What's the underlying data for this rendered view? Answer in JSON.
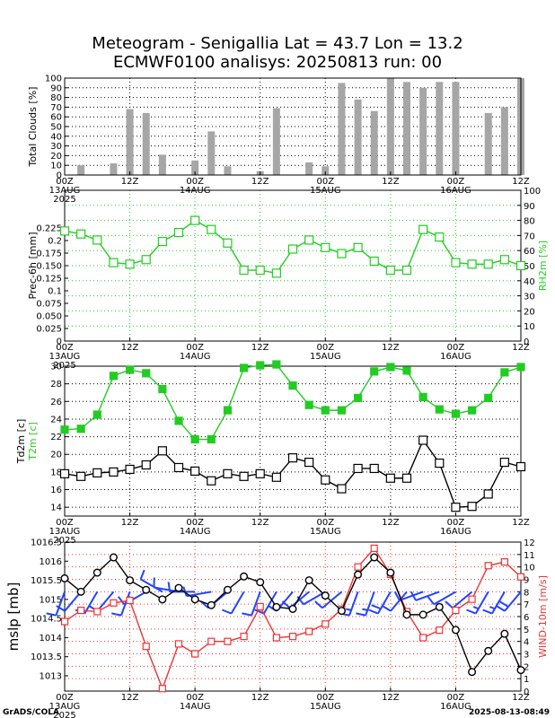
{
  "title_line1": "Meteogram - Senigallia Lat = 43.7 Lon = 13.2",
  "title_line2": "ECMWF0100 analisys: 20250813 run: 00",
  "footer_left": "GrADS/COLA",
  "footer_right": "2025-08-13-08:49",
  "colors": {
    "bars": "#a6a6a6",
    "green": "#22cc22",
    "blue": "#1a1aee",
    "red": "#ee3333",
    "black": "#000000",
    "barb_blue": "#2244ff"
  },
  "time_axis": {
    "labels": [
      "00Z",
      "12Z",
      "00Z",
      "12Z",
      "00Z",
      "12Z",
      "00Z",
      "12Z"
    ],
    "dates": [
      "13AUG",
      "",
      "14AUG",
      "",
      "15AUG",
      "",
      "16AUG",
      ""
    ],
    "year": "2025"
  },
  "chart_data": [
    {
      "type": "bar",
      "name": "clouds",
      "ylabel": "Total Clouds [%]",
      "ylim": [
        0,
        100
      ],
      "yticks": [
        0,
        10,
        20,
        30,
        40,
        50,
        60,
        70,
        80,
        90,
        100
      ],
      "x_hours": [
        3,
        9,
        12,
        15,
        18,
        24,
        27,
        30,
        36,
        39,
        45,
        48,
        51,
        54,
        57,
        60,
        63,
        66,
        69,
        72,
        78,
        81,
        84
      ],
      "values": [
        10,
        12,
        68,
        64,
        21,
        15,
        45,
        9,
        4,
        69,
        13,
        9,
        95,
        78,
        66,
        100,
        96,
        90,
        96,
        96,
        64,
        70,
        100
      ],
      "grid": true
    },
    {
      "type": "line",
      "name": "precip_rh",
      "ylabel": "Prec-6h [mm]",
      "ylabel_right": "RH2m [%]",
      "ylim_left": [
        0,
        0.3
      ],
      "yticks_left": [
        0,
        0.025,
        0.05,
        0.075,
        0.1,
        0.125,
        0.15,
        0.175,
        0.2,
        0.225
      ],
      "ylim_right": [
        0,
        100
      ],
      "yticks_right": [
        0,
        10,
        20,
        30,
        40,
        50,
        60,
        70,
        80,
        90,
        100
      ],
      "series": [
        {
          "name": "RH2m",
          "color": "#22cc22",
          "axis": "right",
          "x_hours": [
            0,
            3,
            6,
            9,
            12,
            15,
            18,
            21,
            24,
            27,
            30,
            33,
            36,
            39,
            42,
            45,
            48,
            51,
            54,
            57,
            60,
            63,
            66,
            69,
            72,
            75,
            78,
            81,
            84
          ],
          "values": [
            73,
            71,
            67,
            52,
            51,
            54,
            66,
            72,
            80,
            74,
            65,
            47,
            47,
            45,
            61,
            67,
            62,
            58,
            62,
            53,
            47,
            47,
            74,
            69,
            52,
            51,
            51,
            54,
            50
          ]
        }
      ],
      "grid": true
    },
    {
      "type": "line",
      "name": "temperature",
      "ylabel": "Td2m [c]",
      "ylabel2": "T2m [c]",
      "ylim": [
        13,
        30
      ],
      "yticks": [
        14,
        16,
        18,
        20,
        22,
        24,
        26,
        28,
        30
      ],
      "series": [
        {
          "name": "T2m",
          "color": "#22cc22",
          "marker": "filled-square",
          "x_hours": [
            0,
            3,
            6,
            9,
            12,
            15,
            18,
            21,
            24,
            27,
            30,
            33,
            36,
            39,
            42,
            45,
            48,
            51,
            54,
            57,
            60,
            63,
            66,
            69,
            72,
            75,
            78,
            81,
            84
          ],
          "values": [
            22.8,
            22.9,
            24.5,
            28.9,
            29.6,
            29.2,
            27.4,
            23.8,
            21.7,
            21.7,
            25.0,
            29.8,
            30.1,
            30.2,
            27.8,
            25.6,
            25.0,
            25.0,
            26.4,
            29.4,
            29.9,
            29.5,
            26.5,
            25.1,
            24.6,
            25.0,
            26.4,
            29.3,
            29.9
          ]
        },
        {
          "name": "Td2m",
          "color": "#000000",
          "marker": "open-square",
          "x_hours": [
            0,
            3,
            6,
            9,
            12,
            15,
            18,
            21,
            24,
            27,
            30,
            33,
            36,
            39,
            42,
            45,
            48,
            51,
            54,
            57,
            60,
            63,
            66,
            69,
            72,
            75,
            78,
            81,
            84
          ],
          "values": [
            17.8,
            17.5,
            17.9,
            18.0,
            18.3,
            18.8,
            20.4,
            18.5,
            18.1,
            17.0,
            17.8,
            17.5,
            17.8,
            17.4,
            19.6,
            19.1,
            17.1,
            16.1,
            18.4,
            18.4,
            17.3,
            17.3,
            21.6,
            19.0,
            14.0,
            14.1,
            15.5,
            19.1,
            18.6
          ]
        }
      ],
      "grid": true
    },
    {
      "type": "line",
      "name": "pressure_wind",
      "ylabel": "mslp [mb]",
      "ylabel_right": "WIND-10m [m/s]",
      "ylim_left": [
        1012.6,
        1016.5
      ],
      "yticks_left": [
        1013,
        1013.5,
        1014,
        1014.5,
        1015,
        1015.5,
        1016,
        1016.5
      ],
      "ylim_right": [
        0,
        12
      ],
      "yticks_right": [
        0,
        1,
        2,
        3,
        4,
        5,
        6,
        7,
        8,
        9,
        10,
        11,
        12
      ],
      "series": [
        {
          "name": "mslp",
          "color": "#000000",
          "marker": "open-circle",
          "x_hours": [
            0,
            3,
            6,
            9,
            12,
            15,
            18,
            21,
            24,
            27,
            30,
            33,
            36,
            39,
            42,
            45,
            48,
            51,
            54,
            57,
            60,
            63,
            66,
            69,
            72,
            75,
            78,
            81,
            84
          ],
          "values": [
            1015.55,
            1015.2,
            1015.7,
            1016.1,
            1015.5,
            1015.25,
            1015.0,
            1015.3,
            1015.0,
            1014.85,
            1015.25,
            1015.6,
            1015.45,
            1014.8,
            1014.75,
            1015.5,
            1015.1,
            1014.7,
            1015.65,
            1016.1,
            1015.7,
            1014.6,
            1014.6,
            1014.8,
            1014.2,
            1013.1,
            1013.65,
            1014.1,
            1013.15
          ]
        },
        {
          "name": "WIND-10m",
          "color": "#ee3333",
          "marker": "open-square",
          "axis": "right",
          "x_hours": [
            0,
            3,
            6,
            9,
            12,
            15,
            18,
            21,
            24,
            27,
            30,
            33,
            36,
            39,
            42,
            45,
            48,
            51,
            54,
            57,
            60,
            63,
            66,
            69,
            72,
            75,
            78,
            81,
            84
          ],
          "values": [
            5.6,
            6.5,
            6.4,
            7.1,
            7.3,
            3.6,
            0.2,
            3.8,
            3.0,
            4.0,
            4.0,
            4.4,
            6.8,
            4.3,
            4.4,
            4.8,
            5.4,
            6.6,
            10.0,
            11.5,
            9.4,
            6.4,
            4.3,
            4.9,
            6.5,
            7.4,
            10.1,
            10.4,
            9.2
          ]
        }
      ],
      "wind_barbs": [
        {
          "x_hour": 0,
          "dir_deg": 200,
          "speed": 6
        },
        {
          "x_hour": 3,
          "dir_deg": 220,
          "speed": 6
        },
        {
          "x_hour": 6,
          "dir_deg": 210,
          "speed": 6
        },
        {
          "x_hour": 9,
          "dir_deg": 220,
          "speed": 7
        },
        {
          "x_hour": 12,
          "dir_deg": 200,
          "speed": 7
        },
        {
          "x_hour": 15,
          "dir_deg": 240,
          "speed": 4
        },
        {
          "x_hour": 18,
          "dir_deg": 300,
          "speed": 1
        },
        {
          "x_hour": 21,
          "dir_deg": 280,
          "speed": 4
        },
        {
          "x_hour": 24,
          "dir_deg": 270,
          "speed": 3
        },
        {
          "x_hour": 27,
          "dir_deg": 260,
          "speed": 4
        },
        {
          "x_hour": 30,
          "dir_deg": 230,
          "speed": 4
        },
        {
          "x_hour": 33,
          "dir_deg": 210,
          "speed": 4
        },
        {
          "x_hour": 36,
          "dir_deg": 200,
          "speed": 7
        },
        {
          "x_hour": 39,
          "dir_deg": 210,
          "speed": 4
        },
        {
          "x_hour": 42,
          "dir_deg": 220,
          "speed": 4
        },
        {
          "x_hour": 45,
          "dir_deg": 230,
          "speed": 5
        },
        {
          "x_hour": 48,
          "dir_deg": 240,
          "speed": 5
        },
        {
          "x_hour": 51,
          "dir_deg": 230,
          "speed": 7
        },
        {
          "x_hour": 54,
          "dir_deg": 200,
          "speed": 10
        },
        {
          "x_hour": 57,
          "dir_deg": 200,
          "speed": 11
        },
        {
          "x_hour": 60,
          "dir_deg": 210,
          "speed": 9
        },
        {
          "x_hour": 63,
          "dir_deg": 220,
          "speed": 6
        },
        {
          "x_hour": 66,
          "dir_deg": 250,
          "speed": 4
        },
        {
          "x_hour": 69,
          "dir_deg": 250,
          "speed": 5
        },
        {
          "x_hour": 72,
          "dir_deg": 240,
          "speed": 6
        },
        {
          "x_hour": 75,
          "dir_deg": 230,
          "speed": 7
        },
        {
          "x_hour": 78,
          "dir_deg": 210,
          "speed": 10
        },
        {
          "x_hour": 81,
          "dir_deg": 210,
          "speed": 10
        },
        {
          "x_hour": 84,
          "dir_deg": 220,
          "speed": 9
        }
      ],
      "grid": true
    }
  ]
}
